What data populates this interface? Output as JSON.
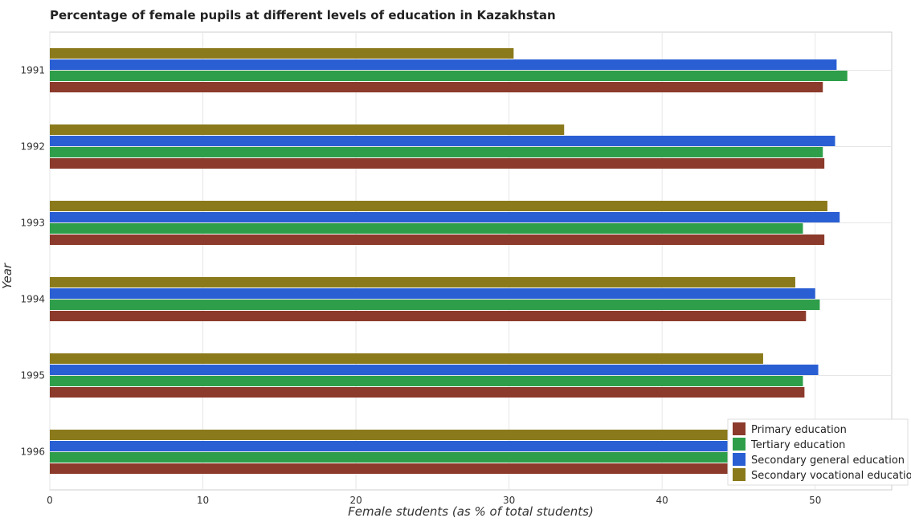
{
  "chart_data": {
    "type": "bar",
    "orientation": "horizontal",
    "title": "Percentage of female pupils at different levels of education in Kazakhstan",
    "xlabel": "Female students (as % of total students)",
    "ylabel": "Year",
    "xlim": [
      0,
      55
    ],
    "xticks": [
      0,
      10,
      20,
      30,
      40,
      50
    ],
    "grid": true,
    "legend_position": "bottom-right",
    "categories": [
      "1991",
      "1992",
      "1993",
      "1994",
      "1995",
      "1996"
    ],
    "series": [
      {
        "name": "Primary education",
        "color": "#8b3a2b",
        "values": [
          50.5,
          50.6,
          50.6,
          49.4,
          49.3,
          49.3
        ]
      },
      {
        "name": "Tertiary education",
        "color": "#2e9e4a",
        "values": [
          52.1,
          50.5,
          49.2,
          50.3,
          49.2,
          49.2
        ]
      },
      {
        "name": "Secondary general education",
        "color": "#2a5fd4",
        "values": [
          51.4,
          51.3,
          51.6,
          50.0,
          50.2,
          49.1
        ]
      },
      {
        "name": "Secondary vocational education",
        "color": "#8a7a1c",
        "values": [
          30.3,
          33.6,
          50.8,
          48.7,
          46.6,
          47.7
        ]
      }
    ]
  }
}
